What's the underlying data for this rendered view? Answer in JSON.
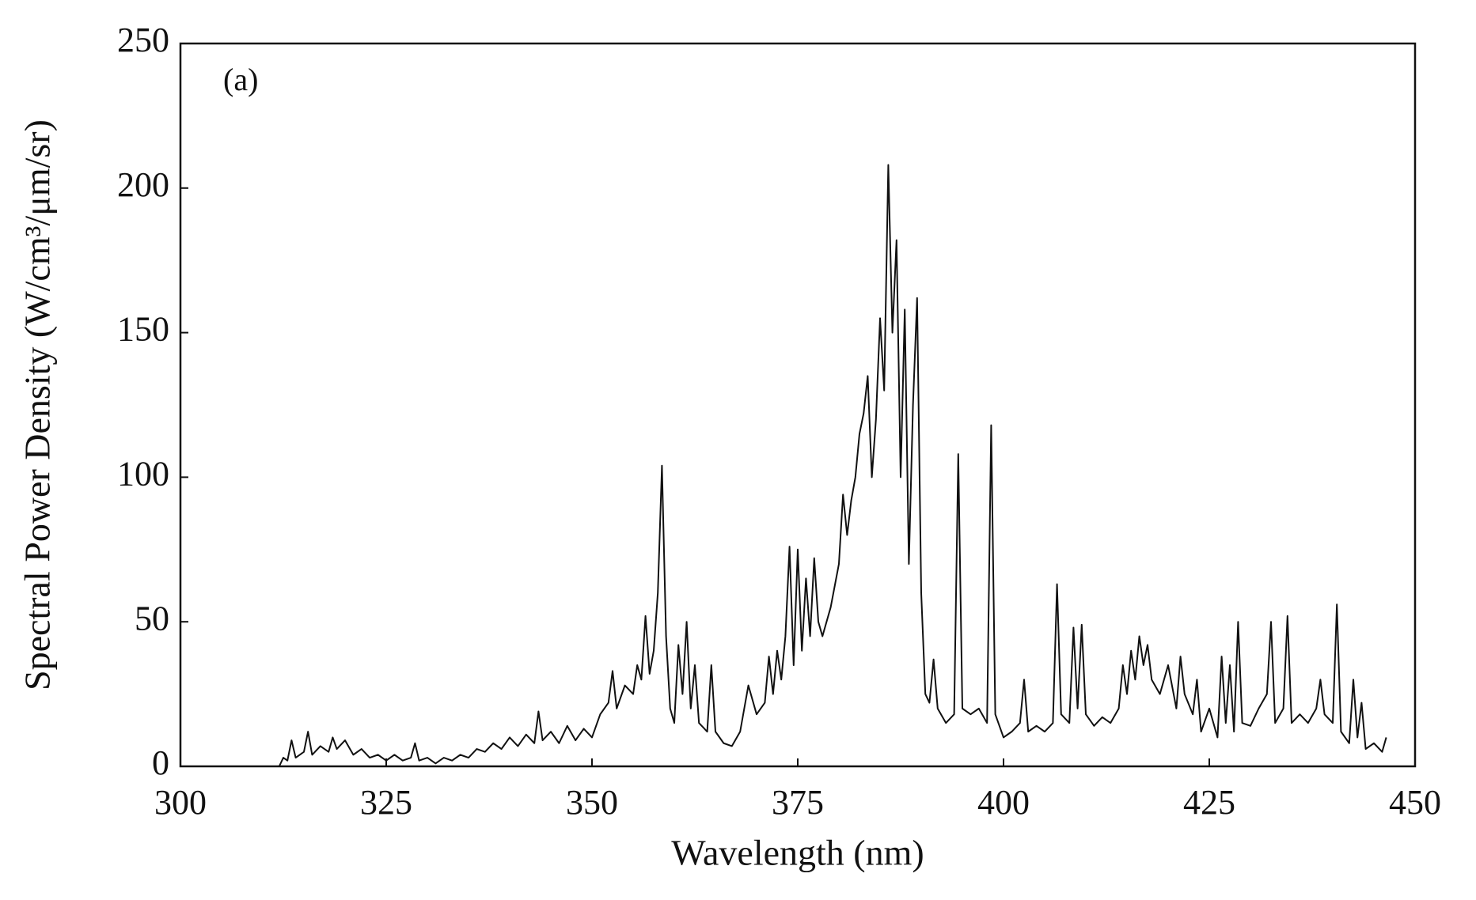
{
  "chart_data": {
    "type": "line",
    "annotation": "(a)",
    "x_label": "Wavelength (nm)",
    "y_label": "Spectral Power Density (W/cm³/μm/sr)",
    "xlim": [
      300,
      450
    ],
    "xticks": [
      300,
      325,
      350,
      375,
      400,
      425,
      450
    ],
    "ylim": [
      0,
      250
    ],
    "yticks": [
      0,
      50,
      100,
      150,
      200,
      250
    ],
    "color": "#111111",
    "x": [
      308,
      310,
      312,
      312.5,
      313,
      313.5,
      314,
      315,
      315.5,
      316,
      317,
      318,
      318.5,
      319,
      320,
      321,
      322,
      323,
      324,
      325,
      326,
      327,
      328,
      328.5,
      329,
      330,
      331,
      332,
      333,
      334,
      335,
      336,
      337,
      338,
      339,
      340,
      341,
      342,
      343,
      343.5,
      344,
      345,
      346,
      347,
      348,
      349,
      350,
      351,
      352,
      352.5,
      353,
      354,
      355,
      355.5,
      356,
      356.5,
      357,
      357.5,
      358,
      358.5,
      359,
      359.5,
      360,
      360.5,
      361,
      361.5,
      362,
      362.5,
      363,
      364,
      364.5,
      365,
      366,
      367,
      368,
      368.5,
      369,
      370,
      371,
      371.5,
      372,
      372.5,
      373,
      373.5,
      374,
      374.5,
      375,
      375.5,
      376,
      376.5,
      377,
      377.5,
      378,
      379,
      380,
      380.5,
      381,
      381.5,
      382,
      382.5,
      383,
      383.5,
      384,
      384.5,
      385,
      385.5,
      386,
      386.5,
      387,
      387.5,
      388,
      388.5,
      389,
      389.5,
      390,
      390.5,
      391,
      391.5,
      392,
      393,
      394,
      394.5,
      395,
      396,
      397,
      398,
      398.5,
      399,
      400,
      401,
      402,
      402.5,
      403,
      404,
      405,
      406,
      406.5,
      407,
      408,
      408.5,
      409,
      409.5,
      410,
      411,
      412,
      413,
      414,
      414.5,
      415,
      415.5,
      416,
      416.5,
      417,
      417.5,
      418,
      419,
      420,
      421,
      421.5,
      422,
      423,
      423.5,
      424,
      425,
      426,
      426.5,
      427,
      427.5,
      428,
      428.5,
      429,
      430,
      431,
      432,
      432.5,
      433,
      434,
      434.5,
      435,
      436,
      437,
      438,
      438.5,
      439,
      440,
      440.5,
      441,
      442,
      442.5,
      443,
      443.5,
      444,
      445,
      446,
      446.5
    ],
    "values": [
      0,
      0,
      0,
      3,
      2,
      9,
      3,
      5,
      12,
      4,
      7,
      5,
      10,
      6,
      9,
      4,
      6,
      3,
      4,
      2,
      4,
      2,
      3,
      8,
      2,
      3,
      1,
      3,
      2,
      4,
      3,
      6,
      5,
      8,
      6,
      10,
      7,
      11,
      8,
      19,
      9,
      12,
      8,
      14,
      9,
      13,
      10,
      18,
      22,
      33,
      20,
      28,
      25,
      35,
      30,
      52,
      32,
      40,
      60,
      104,
      45,
      20,
      15,
      42,
      25,
      50,
      20,
      35,
      15,
      12,
      35,
      12,
      8,
      7,
      12,
      20,
      28,
      18,
      22,
      38,
      25,
      40,
      30,
      45,
      76,
      35,
      75,
      40,
      65,
      45,
      72,
      50,
      45,
      55,
      70,
      94,
      80,
      92,
      100,
      115,
      122,
      135,
      100,
      120,
      155,
      130,
      208,
      150,
      182,
      100,
      158,
      70,
      125,
      162,
      60,
      25,
      22,
      37,
      20,
      15,
      18,
      108,
      20,
      18,
      20,
      15,
      118,
      18,
      10,
      12,
      15,
      30,
      12,
      14,
      12,
      15,
      63,
      18,
      15,
      48,
      20,
      49,
      18,
      14,
      17,
      15,
      20,
      35,
      25,
      40,
      30,
      45,
      35,
      42,
      30,
      25,
      35,
      20,
      38,
      25,
      18,
      30,
      12,
      20,
      10,
      38,
      15,
      35,
      12,
      50,
      15,
      14,
      20,
      25,
      50,
      15,
      20,
      52,
      15,
      18,
      15,
      20,
      30,
      18,
      15,
      56,
      12,
      8,
      30,
      10,
      22,
      6,
      8,
      5,
      10
    ]
  }
}
